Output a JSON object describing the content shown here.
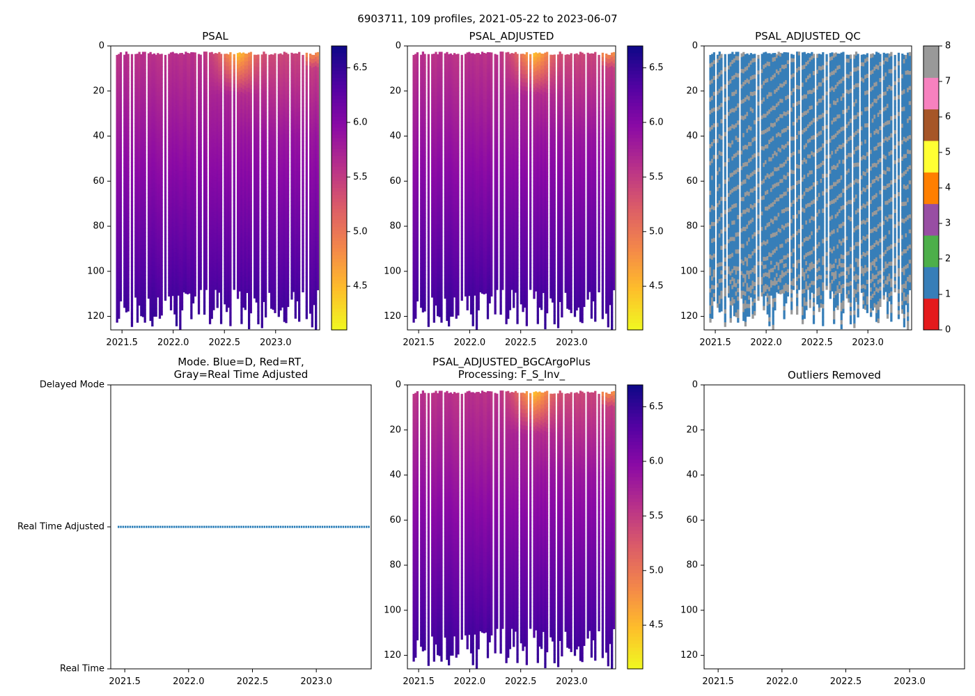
{
  "figure_title": "6903711, 109 profiles, 2021-05-22 to 2023-06-07",
  "chart_data": [
    {
      "id": "psal",
      "type": "heatmap",
      "title": "PSAL",
      "xlim": [
        2021.39,
        2023.43
      ],
      "ylim": [
        126,
        0
      ],
      "x_ticks": [
        2021.5,
        2022.0,
        2022.5,
        2023.0
      ],
      "x_tick_labels": [
        "2021.5",
        "2022.0",
        "2022.5",
        "2023.0"
      ],
      "y_ticks": [
        0,
        20,
        40,
        60,
        80,
        100,
        120
      ],
      "y_tick_labels": [
        "0",
        "20",
        "40",
        "60",
        "80",
        "100",
        "120"
      ],
      "colormap": "plasma_r",
      "colorbar_range": [
        4.1,
        6.7
      ],
      "colorbar_ticks": [
        4.5,
        5.0,
        5.5,
        6.0,
        6.5
      ],
      "colorbar_tick_labels": [
        "4.5",
        "5.0",
        "5.5",
        "6.0",
        "6.5"
      ]
    },
    {
      "id": "psal_adjusted",
      "type": "heatmap",
      "title": "PSAL_ADJUSTED",
      "xlim": [
        2021.39,
        2023.43
      ],
      "ylim": [
        126,
        0
      ],
      "x_ticks": [
        2021.5,
        2022.0,
        2022.5,
        2023.0
      ],
      "x_tick_labels": [
        "2021.5",
        "2022.0",
        "2022.5",
        "2023.0"
      ],
      "y_ticks": [
        0,
        20,
        40,
        60,
        80,
        100,
        120
      ],
      "y_tick_labels": [
        "0",
        "20",
        "40",
        "60",
        "80",
        "100",
        "120"
      ],
      "colormap": "plasma_r",
      "colorbar_range": [
        4.1,
        6.7
      ],
      "colorbar_ticks": [
        4.5,
        5.0,
        5.5,
        6.0,
        6.5
      ],
      "colorbar_tick_labels": [
        "4.5",
        "5.0",
        "5.5",
        "6.0",
        "6.5"
      ]
    },
    {
      "id": "psal_adjusted_qc",
      "type": "heatmap",
      "title": "PSAL_ADJUSTED_QC",
      "xlim": [
        2021.39,
        2023.43
      ],
      "ylim": [
        126,
        0
      ],
      "x_ticks": [
        2021.5,
        2022.0,
        2022.5,
        2023.0
      ],
      "x_tick_labels": [
        "2021.5",
        "2022.0",
        "2022.5",
        "2023.0"
      ],
      "y_ticks": [
        0,
        20,
        40,
        60,
        80,
        100,
        120
      ],
      "y_tick_labels": [
        "0",
        "20",
        "40",
        "60",
        "80",
        "100",
        "120"
      ],
      "colorbar_range": [
        0,
        8
      ],
      "colorbar_ticks": [
        0,
        1,
        2,
        3,
        4,
        5,
        6,
        7,
        8
      ],
      "colorbar_tick_labels": [
        "0",
        "1",
        "2",
        "3",
        "4",
        "5",
        "6",
        "7",
        "8"
      ],
      "qc_colors": [
        "#e41a1c",
        "#377eb8",
        "#4daf4a",
        "#984ea3",
        "#ff7f00",
        "#ffff33",
        "#a65628",
        "#f781bf",
        "#999999"
      ]
    },
    {
      "id": "mode",
      "type": "scatter",
      "title_lines": [
        "Mode. Blue=D, Red=RT,",
        "Gray=Real Time Adjusted"
      ],
      "xlim": [
        2021.39,
        2023.43
      ],
      "ylim": [
        0,
        2
      ],
      "x_ticks": [
        2021.5,
        2022.0,
        2022.5,
        2023.0
      ],
      "x_tick_labels": [
        "2021.5",
        "2022.0",
        "2022.5",
        "2023.0"
      ],
      "y_ticks": [
        0,
        1,
        2
      ],
      "y_tick_labels": [
        "Real Time",
        "Real Time Adjusted",
        "Delayed Mode"
      ],
      "series": [
        {
          "name": "profiles",
          "y": 1,
          "color": "#1f77b4",
          "count": 109
        }
      ]
    },
    {
      "id": "psal_bgc",
      "type": "heatmap",
      "title_lines": [
        "PSAL_ADJUSTED_BGCArgoPlus",
        "Processing: F_S_Inv_"
      ],
      "xlim": [
        2021.39,
        2023.43
      ],
      "ylim": [
        126,
        0
      ],
      "x_ticks": [
        2021.5,
        2022.0,
        2022.5,
        2023.0
      ],
      "x_tick_labels": [
        "2021.5",
        "2022.0",
        "2022.5",
        "2023.0"
      ],
      "y_ticks": [
        0,
        20,
        40,
        60,
        80,
        100,
        120
      ],
      "y_tick_labels": [
        "0",
        "20",
        "40",
        "60",
        "80",
        "100",
        "120"
      ],
      "colormap": "plasma_r",
      "colorbar_range": [
        4.1,
        6.7
      ],
      "colorbar_ticks": [
        4.5,
        5.0,
        5.5,
        6.0,
        6.5
      ],
      "colorbar_tick_labels": [
        "4.5",
        "5.0",
        "5.5",
        "6.0",
        "6.5"
      ]
    },
    {
      "id": "outliers",
      "type": "scatter",
      "title": "Outliers Removed",
      "xlim": [
        2021.39,
        2023.43
      ],
      "ylim": [
        126,
        0
      ],
      "x_ticks": [
        2021.5,
        2022.0,
        2022.5,
        2023.0
      ],
      "x_tick_labels": [
        "2021.5",
        "2022.0",
        "2022.5",
        "2023.0"
      ],
      "y_ticks": [
        0,
        20,
        40,
        60,
        80,
        100,
        120
      ],
      "y_tick_labels": [
        "0",
        "20",
        "40",
        "60",
        "80",
        "100",
        "120"
      ],
      "series": []
    }
  ]
}
